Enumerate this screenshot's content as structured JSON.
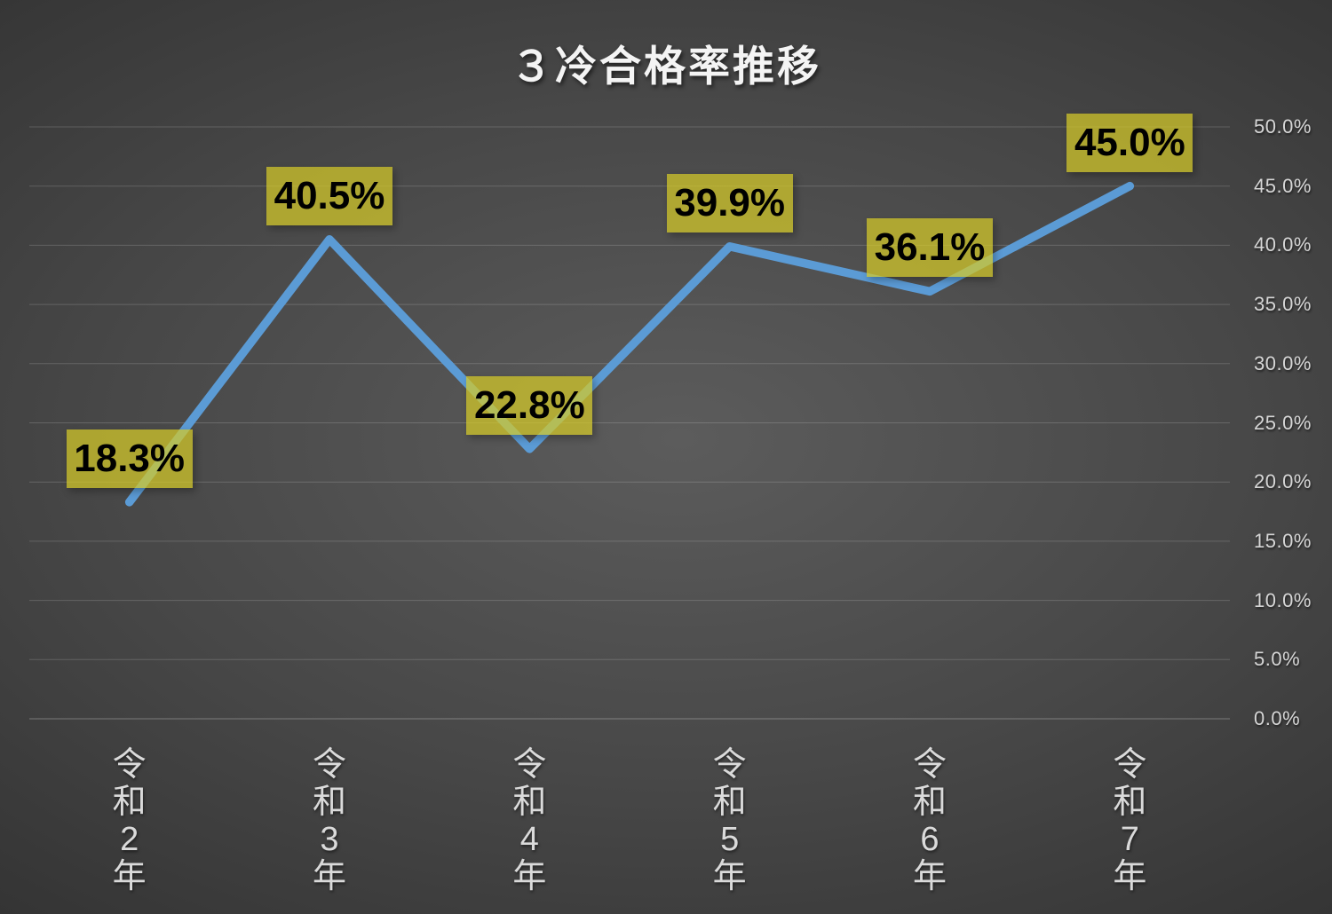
{
  "chart_data": {
    "type": "line",
    "title": "３冷合格率推移",
    "categories": [
      "令和2年",
      "令和3年",
      "令和4年",
      "令和5年",
      "令和6年",
      "令和7年"
    ],
    "values": [
      18.3,
      40.5,
      22.8,
      39.9,
      36.1,
      45.0
    ],
    "data_labels": [
      "18.3%",
      "40.5%",
      "22.8%",
      "39.9%",
      "36.1%",
      "45.0%"
    ],
    "y_ticks": {
      "values": [
        50,
        45,
        40,
        35,
        30,
        25,
        20,
        15,
        10,
        5,
        0
      ],
      "labels": [
        "50.0%",
        "45.0%",
        "40.0%",
        "35.0%",
        "30.0%",
        "25.0%",
        "20.0%",
        "15.0%",
        "10.0%",
        "5.0%",
        "0.0%"
      ]
    },
    "ylim": [
      0,
      50
    ],
    "y_axis_position": "right",
    "x_label_orientation": "vertical-stacked",
    "grid": true,
    "legend": "none",
    "colors": {
      "line": "#5B9BD5",
      "label_box": "#D5CA28",
      "label_text": "#000000",
      "axis_text": "#D6D6D6",
      "title_text": "#F4F4F4",
      "gridline": "#FFFFFF",
      "background_center": "#5C5C5C",
      "background_edge": "#262626"
    }
  }
}
